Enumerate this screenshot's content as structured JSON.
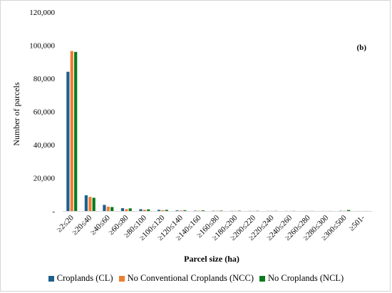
{
  "chart_data": {
    "type": "bar",
    "panel_label": "(b)",
    "xlabel": "Parcel size (ha)",
    "ylabel": "Number of parcels",
    "ylim": [
      0,
      120000
    ],
    "yticks": [
      0,
      20000,
      40000,
      60000,
      80000,
      100000,
      120000
    ],
    "ytick_labels": [
      "-",
      "20,000",
      "40,000",
      "60,000",
      "80,000",
      "100,000",
      "120,000"
    ],
    "grid": false,
    "legend_position": "bottom",
    "categories": [
      "≥2≤20",
      "≥20≤40",
      "≥40≤60",
      "≥60≤80",
      "≥80≤100",
      "≥100≤120",
      "≥120≤140",
      "≥140≤160",
      "≥160≤80",
      "≥180≤200",
      "≥200≤220",
      "≥220≤240",
      "≥240≤260",
      "≥260≤280",
      "≥280≤300",
      "≥300≤500",
      "≥501-"
    ],
    "series": [
      {
        "name": "Croplands (CL)",
        "color": "#1f5f8b",
        "values": [
          84000,
          9500,
          3700,
          1700,
          1100,
          700,
          400,
          200,
          150,
          100,
          80,
          60,
          50,
          40,
          30,
          150,
          20
        ]
      },
      {
        "name": "No Conventional Croplands (NCC)",
        "color": "#ed7d31",
        "values": [
          96500,
          8500,
          2600,
          1100,
          700,
          500,
          300,
          200,
          150,
          100,
          80,
          60,
          50,
          40,
          30,
          150,
          20
        ]
      },
      {
        "name": "No Croplands (NCL)",
        "color": "#0b7a1e",
        "values": [
          96000,
          8000,
          2400,
          1600,
          1000,
          700,
          500,
          400,
          250,
          200,
          150,
          100,
          80,
          60,
          50,
          600,
          40
        ]
      }
    ]
  }
}
